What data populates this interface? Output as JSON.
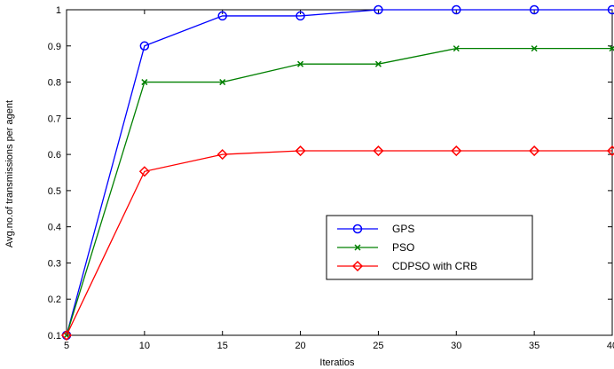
{
  "chart_data": {
    "type": "line",
    "title": "",
    "xlabel": "Iteratios",
    "ylabel": "Avg.no.of transmissions per agent",
    "x": [
      5,
      10,
      15,
      20,
      25,
      30,
      35,
      40
    ],
    "xlim": [
      5,
      40
    ],
    "ylim": [
      0.1,
      1.0
    ],
    "xticks": [
      "5",
      "10",
      "15",
      "20",
      "25",
      "30",
      "35",
      "40"
    ],
    "yticks": [
      "0.1",
      "0.2",
      "0.3",
      "0.4",
      "0.5",
      "0.6",
      "0.7",
      "0.8",
      "0.9",
      "1"
    ],
    "grid": false,
    "legend_position": "center-right",
    "series": [
      {
        "name": "GPS",
        "color": "#0000ff",
        "marker": "circle",
        "values": [
          0.1,
          0.9,
          0.983,
          0.983,
          1.0,
          1.0,
          1.0,
          1.0
        ]
      },
      {
        "name": "PSO",
        "color": "#008000",
        "marker": "x",
        "values": [
          0.1,
          0.8,
          0.8,
          0.85,
          0.85,
          0.893,
          0.893,
          0.893
        ]
      },
      {
        "name": "CDPSO with CRB",
        "color": "#ff0000",
        "marker": "diamond",
        "values": [
          0.1,
          0.553,
          0.6,
          0.61,
          0.61,
          0.61,
          0.61,
          0.61
        ]
      }
    ]
  }
}
